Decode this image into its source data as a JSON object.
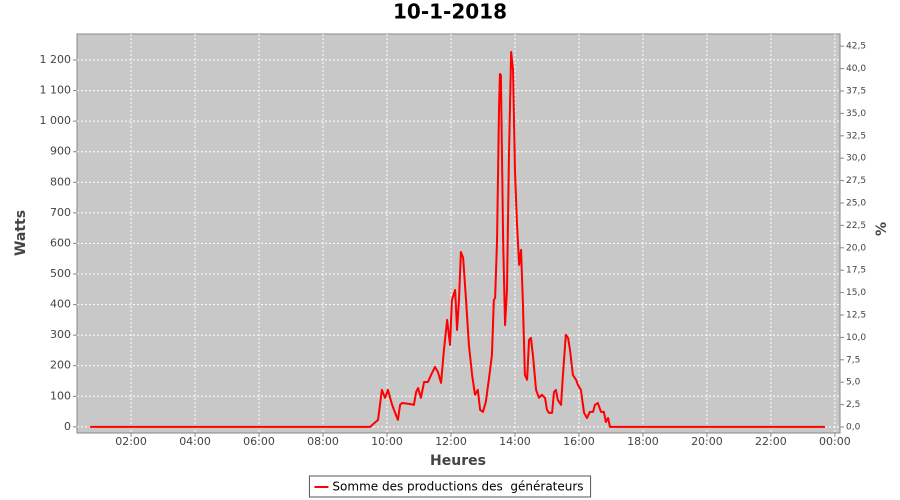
{
  "chart_data": {
    "type": "line",
    "title": "10-1-2018",
    "x_label": "Heures",
    "y_label": "Watts",
    "y2_label": "%",
    "x": [
      0.72,
      9.47,
      9.72,
      9.84,
      9.94,
      10.03,
      10.16,
      10.28,
      10.34,
      10.41,
      10.47,
      10.72,
      10.84,
      10.91,
      10.97,
      11.06,
      11.16,
      11.28,
      11.41,
      11.5,
      11.59,
      11.69,
      11.78,
      11.88,
      11.97,
      12.03,
      12.13,
      12.19,
      12.25,
      12.31,
      12.38,
      12.47,
      12.56,
      12.66,
      12.75,
      12.84,
      12.91,
      13.0,
      13.09,
      13.19,
      13.28,
      13.34,
      13.38,
      13.44,
      13.5,
      13.53,
      13.56,
      13.63,
      13.69,
      13.75,
      13.81,
      13.88,
      13.94,
      14.0,
      14.06,
      14.13,
      14.19,
      14.25,
      14.31,
      14.38,
      14.44,
      14.5,
      14.56,
      14.66,
      14.75,
      14.84,
      14.94,
      15.0,
      15.06,
      15.16,
      15.22,
      15.28,
      15.34,
      15.44,
      15.5,
      15.59,
      15.66,
      15.72,
      15.81,
      15.91,
      15.97,
      16.06,
      16.16,
      16.25,
      16.34,
      16.44,
      16.5,
      16.59,
      16.69,
      16.78,
      16.84,
      16.91,
      16.97,
      17.03,
      23.69
    ],
    "series": [
      {
        "name": "Somme des productions des  générateurs",
        "color": "#ff0000",
        "values": [
          0,
          0,
          23,
          121,
          95,
          121,
          72,
          39,
          23,
          72,
          78,
          75,
          72,
          114,
          127,
          95,
          147,
          147,
          177,
          196,
          180,
          144,
          252,
          350,
          268,
          415,
          448,
          317,
          415,
          572,
          553,
          415,
          268,
          170,
          105,
          121,
          56,
          49,
          82,
          160,
          235,
          415,
          422,
          611,
          1036,
          1154,
          1151,
          611,
          333,
          448,
          873,
          1226,
          1167,
          837,
          673,
          530,
          579,
          399,
          170,
          154,
          284,
          291,
          235,
          121,
          95,
          105,
          95,
          56,
          46,
          46,
          114,
          121,
          88,
          72,
          170,
          301,
          291,
          252,
          170,
          154,
          137,
          121,
          46,
          29,
          49,
          49,
          72,
          78,
          49,
          49,
          16,
          29,
          0,
          0,
          0
        ]
      }
    ],
    "xlim": [
      0.31,
      24.16
    ],
    "xticks": [
      {
        "value": 2,
        "label": "02:00"
      },
      {
        "value": 4,
        "label": "04:00"
      },
      {
        "value": 6,
        "label": "06:00"
      },
      {
        "value": 8,
        "label": "08:00"
      },
      {
        "value": 10,
        "label": "10:00"
      },
      {
        "value": 12,
        "label": "12:00"
      },
      {
        "value": 14,
        "label": "14:00"
      },
      {
        "value": 16,
        "label": "16:00"
      },
      {
        "value": 18,
        "label": "18:00"
      },
      {
        "value": 20,
        "label": "20:00"
      },
      {
        "value": 22,
        "label": "22:00"
      },
      {
        "value": 24,
        "label": "00:00"
      }
    ],
    "ylim": [
      -20,
      1285
    ],
    "yticks": [
      0,
      100,
      200,
      300,
      400,
      500,
      600,
      700,
      800,
      900,
      {
        "value": 1000,
        "label": "1 000"
      },
      {
        "value": 1100,
        "label": "1 100"
      },
      {
        "value": 1200,
        "label": "1 200"
      }
    ],
    "y2lim": [
      -0.67,
      43.86
    ],
    "y2ticks": [
      {
        "value": 0,
        "label": "0,0"
      },
      {
        "value": 2.5,
        "label": "2,5"
      },
      {
        "value": 5,
        "label": "5,0"
      },
      {
        "value": 7.5,
        "label": "7,5"
      },
      {
        "value": 10,
        "label": "10,0"
      },
      {
        "value": 12.5,
        "label": "12,5"
      },
      {
        "value": 15,
        "label": "15,0"
      },
      {
        "value": 17.5,
        "label": "17,5"
      },
      {
        "value": 20,
        "label": "20,0"
      },
      {
        "value": 22.5,
        "label": "22,5"
      },
      {
        "value": 25,
        "label": "25,0"
      },
      {
        "value": 27.5,
        "label": "27,5"
      },
      {
        "value": 30,
        "label": "30,0"
      },
      {
        "value": 32.5,
        "label": "32,5"
      },
      {
        "value": 35,
        "label": "35,0"
      },
      {
        "value": 37.5,
        "label": "37,5"
      },
      {
        "value": 40,
        "label": "40,0"
      },
      {
        "value": 42.5,
        "label": "42,5"
      }
    ],
    "grid": true,
    "legend": "bottom"
  }
}
